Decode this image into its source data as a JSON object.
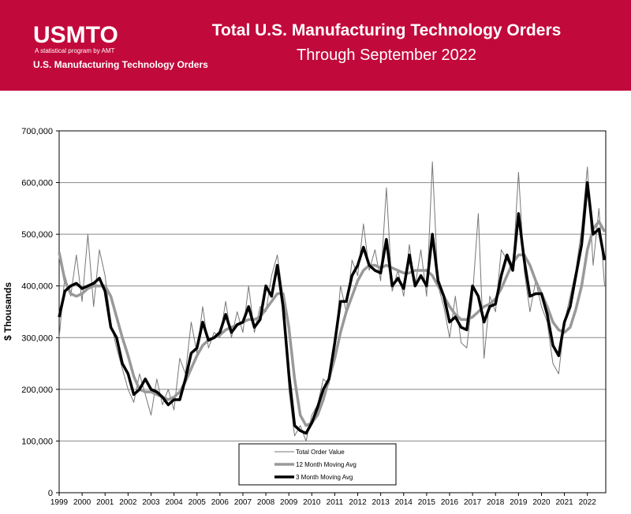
{
  "header": {
    "logo": "USMTO",
    "tagline": "A statistical program by AMT",
    "program": "U.S. Manufacturing Technology Orders"
  },
  "chart_data": {
    "type": "line",
    "title": "Total U.S. Manufacturing Technology Orders",
    "subtitle": "Through September 2022",
    "y_label": "$ Thousands",
    "x": [
      1999,
      1999.25,
      1999.5,
      1999.75,
      2000,
      2000.25,
      2000.5,
      2000.75,
      2001,
      2001.25,
      2001.5,
      2001.75,
      2002,
      2002.25,
      2002.5,
      2002.75,
      2003,
      2003.25,
      2003.5,
      2003.75,
      2004,
      2004.25,
      2004.5,
      2004.75,
      2005,
      2005.25,
      2005.5,
      2005.75,
      2006,
      2006.25,
      2006.5,
      2006.75,
      2007,
      2007.25,
      2007.5,
      2007.75,
      2008,
      2008.25,
      2008.5,
      2008.75,
      2009,
      2009.25,
      2009.5,
      2009.75,
      2010,
      2010.25,
      2010.5,
      2010.75,
      2011,
      2011.25,
      2011.5,
      2011.75,
      2012,
      2012.25,
      2012.5,
      2012.75,
      2013,
      2013.25,
      2013.5,
      2013.75,
      2014,
      2014.25,
      2014.5,
      2014.75,
      2015,
      2015.25,
      2015.5,
      2015.75,
      2016,
      2016.25,
      2016.5,
      2016.75,
      2017,
      2017.25,
      2017.5,
      2017.75,
      2018,
      2018.25,
      2018.5,
      2018.75,
      2019,
      2019.25,
      2019.5,
      2019.75,
      2020,
      2020.25,
      2020.5,
      2020.75,
      2021,
      2021.25,
      2021.5,
      2021.75,
      2022,
      2022.25,
      2022.5,
      2022.75
    ],
    "series": [
      {
        "name": "Total Order Value",
        "color": "#777777",
        "width": 1,
        "values": [
          300000,
          420000,
          380000,
          460000,
          370000,
          500000,
          360000,
          470000,
          420000,
          330000,
          280000,
          240000,
          200000,
          175000,
          230000,
          190000,
          150000,
          220000,
          170000,
          200000,
          160000,
          260000,
          230000,
          330000,
          270000,
          360000,
          280000,
          310000,
          300000,
          370000,
          300000,
          350000,
          310000,
          400000,
          310000,
          360000,
          350000,
          420000,
          460000,
          380000,
          200000,
          110000,
          130000,
          100000,
          150000,
          170000,
          220000,
          210000,
          280000,
          400000,
          350000,
          450000,
          420000,
          520000,
          430000,
          470000,
          410000,
          590000,
          390000,
          430000,
          380000,
          480000,
          400000,
          470000,
          380000,
          640000,
          400000,
          360000,
          300000,
          380000,
          290000,
          280000,
          380000,
          540000,
          260000,
          380000,
          350000,
          470000,
          450000,
          430000,
          620000,
          430000,
          350000,
          410000,
          360000,
          330000,
          250000,
          230000,
          330000,
          380000,
          430000,
          510000,
          630000,
          440000,
          550000,
          400000
        ]
      },
      {
        "name": "12 Month Moving Avg",
        "color": "#999999",
        "width": 3.5,
        "values": [
          465000,
          410000,
          385000,
          380000,
          385000,
          395000,
          400000,
          400000,
          400000,
          380000,
          340000,
          300000,
          265000,
          225000,
          200000,
          195000,
          195000,
          190000,
          185000,
          180000,
          185000,
          195000,
          215000,
          240000,
          265000,
          285000,
          295000,
          300000,
          305000,
          315000,
          320000,
          325000,
          330000,
          335000,
          335000,
          340000,
          355000,
          370000,
          385000,
          385000,
          320000,
          220000,
          150000,
          130000,
          135000,
          150000,
          180000,
          220000,
          260000,
          310000,
          350000,
          380000,
          410000,
          430000,
          440000,
          440000,
          435000,
          440000,
          435000,
          430000,
          425000,
          425000,
          430000,
          430000,
          430000,
          420000,
          400000,
          380000,
          360000,
          345000,
          335000,
          335000,
          340000,
          350000,
          360000,
          365000,
          375000,
          395000,
          420000,
          445000,
          460000,
          460000,
          440000,
          410000,
          385000,
          360000,
          330000,
          315000,
          310000,
          320000,
          355000,
          400000,
          470000,
          510000,
          525000,
          505000
        ]
      },
      {
        "name": "3 Month Moving Avg",
        "color": "#000000",
        "width": 3.5,
        "values": [
          340000,
          390000,
          400000,
          405000,
          395000,
          400000,
          405000,
          415000,
          390000,
          320000,
          300000,
          250000,
          230000,
          190000,
          200000,
          220000,
          200000,
          195000,
          185000,
          170000,
          180000,
          180000,
          220000,
          270000,
          280000,
          330000,
          295000,
          300000,
          310000,
          345000,
          310000,
          325000,
          330000,
          360000,
          320000,
          335000,
          400000,
          380000,
          440000,
          360000,
          230000,
          130000,
          120000,
          115000,
          135000,
          165000,
          200000,
          220000,
          290000,
          370000,
          370000,
          420000,
          440000,
          475000,
          440000,
          430000,
          425000,
          490000,
          400000,
          415000,
          395000,
          460000,
          400000,
          420000,
          400000,
          500000,
          410000,
          380000,
          330000,
          340000,
          320000,
          315000,
          400000,
          380000,
          330000,
          360000,
          365000,
          420000,
          460000,
          430000,
          540000,
          450000,
          380000,
          385000,
          385000,
          345000,
          285000,
          265000,
          330000,
          360000,
          420000,
          480000,
          600000,
          500000,
          510000,
          450000
        ]
      }
    ],
    "xlim": [
      1999,
      2022.8
    ],
    "xticks": [
      1999,
      2000,
      2001,
      2002,
      2003,
      2004,
      2005,
      2006,
      2007,
      2008,
      2009,
      2010,
      2011,
      2012,
      2013,
      2014,
      2015,
      2016,
      2017,
      2018,
      2019,
      2020,
      2021,
      2022
    ],
    "ylim": [
      0,
      700000
    ],
    "yticks": [
      0,
      {
        "value": 100000,
        "label": "100,000"
      },
      {
        "value": 200000,
        "label": "200,000"
      },
      {
        "value": 300000,
        "label": "300,000"
      },
      {
        "value": 400000,
        "label": "400,000"
      },
      {
        "value": 500000,
        "label": "500,000"
      },
      {
        "value": 600000,
        "label": "600,000"
      },
      {
        "value": 700000,
        "label": "700,000"
      }
    ],
    "grid": true
  }
}
